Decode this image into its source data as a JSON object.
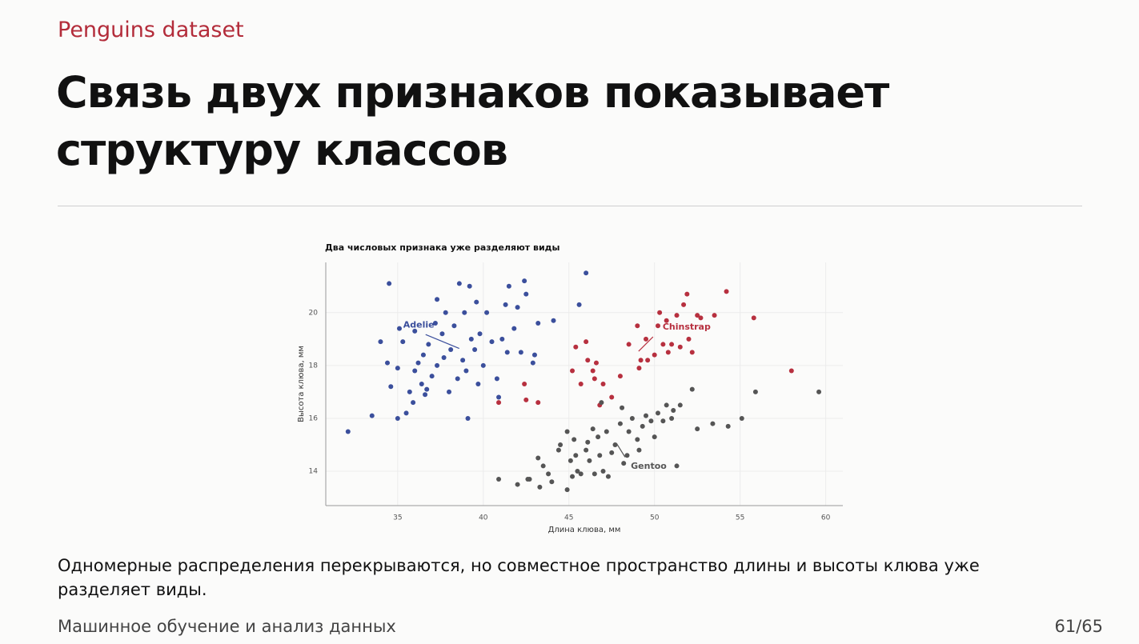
{
  "header": {
    "kicker": "Penguins dataset",
    "title": "Связь двух признаков показывает структуру классов"
  },
  "chart_data": {
    "type": "scatter",
    "title": "Два числовых признака уже разделяют виды",
    "x_label": "Длина клюва, мм",
    "y_label": "Высота клюва, мм",
    "xlim": [
      30.8,
      61.0
    ],
    "ylim": [
      12.7,
      21.9
    ],
    "xticks": [
      35,
      40,
      45,
      50,
      55,
      60
    ],
    "yticks": [
      14,
      16,
      18,
      20
    ],
    "grid": true,
    "series": [
      {
        "name": "Adelie",
        "color": "#3b4f9c",
        "x": [
          32.1,
          33.5,
          34.0,
          34.5,
          34.6,
          34.4,
          35.0,
          35.1,
          35.3,
          35.0,
          35.5,
          35.7,
          35.9,
          36.0,
          36.2,
          36.5,
          36.0,
          36.4,
          36.6,
          36.8,
          37.0,
          37.2,
          37.3,
          37.6,
          37.7,
          37.8,
          37.3,
          38.0,
          38.1,
          38.3,
          38.5,
          38.6,
          38.8,
          38.9,
          39.0,
          39.2,
          39.3,
          39.5,
          39.7,
          39.6,
          39.8,
          40.0,
          40.2,
          40.5,
          40.8,
          40.9,
          41.1,
          41.3,
          41.4,
          41.5,
          41.8,
          42.0,
          42.2,
          42.4,
          42.5,
          42.9,
          43.2,
          44.1,
          45.6,
          46.0,
          43.0,
          39.1,
          36.7
        ],
        "values": [
          15.5,
          16.1,
          18.9,
          21.1,
          17.2,
          18.1,
          17.9,
          19.4,
          18.9,
          16.0,
          16.2,
          17.0,
          16.6,
          17.8,
          18.1,
          18.4,
          19.3,
          17.3,
          16.9,
          18.8,
          17.6,
          19.6,
          18.0,
          19.2,
          18.3,
          20.0,
          20.5,
          17.0,
          18.6,
          19.5,
          17.5,
          21.1,
          18.2,
          20.0,
          17.8,
          21.0,
          19.0,
          18.6,
          17.3,
          20.4,
          19.2,
          18.0,
          20.0,
          18.9,
          17.5,
          16.8,
          19.0,
          20.3,
          18.5,
          21.0,
          19.4,
          20.2,
          18.5,
          21.2,
          20.7,
          18.1,
          19.6,
          19.7,
          20.3,
          21.5,
          18.4,
          16.0,
          17.1
        ]
      },
      {
        "name": "Chinstrap",
        "color": "#b7303f",
        "x": [
          40.9,
          42.4,
          42.5,
          43.2,
          45.2,
          45.4,
          45.7,
          46.0,
          46.1,
          46.4,
          46.6,
          46.8,
          47.0,
          47.5,
          48.0,
          48.5,
          49.0,
          49.2,
          49.5,
          49.6,
          50.0,
          50.2,
          50.3,
          50.5,
          50.7,
          50.8,
          51.0,
          51.3,
          51.5,
          51.7,
          52.0,
          52.2,
          52.5,
          52.7,
          53.5,
          54.2,
          55.8,
          58.0,
          49.1,
          51.9,
          46.5
        ],
        "values": [
          16.6,
          17.3,
          16.7,
          16.6,
          17.8,
          18.7,
          17.3,
          18.9,
          18.2,
          17.8,
          18.1,
          16.5,
          17.3,
          16.8,
          17.6,
          18.8,
          19.5,
          18.2,
          19.0,
          18.2,
          18.4,
          19.5,
          20.0,
          18.8,
          19.7,
          18.5,
          18.8,
          19.9,
          18.7,
          20.3,
          19.0,
          18.5,
          19.9,
          19.8,
          19.9,
          20.8,
          19.8,
          17.8,
          17.9,
          20.7,
          17.5
        ]
      },
      {
        "name": "Gentoo",
        "color": "#555555",
        "x": [
          40.9,
          42.0,
          42.7,
          43.2,
          43.3,
          43.5,
          43.8,
          44.0,
          44.4,
          44.5,
          44.9,
          45.1,
          45.2,
          45.3,
          45.5,
          45.7,
          46.0,
          46.1,
          46.2,
          46.4,
          46.5,
          46.7,
          46.8,
          47.0,
          47.2,
          47.3,
          47.5,
          47.7,
          48.0,
          48.2,
          48.4,
          48.5,
          48.7,
          49.0,
          49.1,
          49.3,
          49.5,
          49.8,
          50.0,
          50.2,
          50.5,
          50.7,
          51.0,
          51.1,
          51.3,
          51.5,
          52.2,
          52.5,
          53.4,
          54.3,
          55.1,
          55.9,
          59.6,
          44.9,
          46.9,
          42.6,
          45.4,
          48.1
        ],
        "values": [
          13.7,
          13.5,
          13.7,
          14.5,
          13.4,
          14.2,
          13.9,
          13.6,
          14.8,
          15.0,
          13.3,
          14.4,
          13.8,
          15.2,
          14.0,
          13.9,
          14.8,
          15.1,
          14.4,
          15.6,
          13.9,
          15.3,
          14.6,
          14.0,
          15.5,
          13.8,
          14.7,
          15.0,
          15.8,
          14.3,
          14.6,
          15.5,
          16.0,
          15.2,
          14.8,
          15.7,
          16.1,
          15.9,
          15.3,
          16.2,
          15.9,
          16.5,
          16.0,
          16.3,
          14.2,
          16.5,
          17.1,
          15.6,
          15.8,
          15.7,
          16.0,
          17.0,
          17.0,
          15.5,
          16.6,
          13.7,
          14.6,
          16.4
        ]
      }
    ]
  },
  "body": {
    "text": "Одномерные распределения перекрываются, но совместное пространство длины и высоты клюва уже разделяет виды."
  },
  "footer": {
    "course": "Машинное обучение и анализ данных",
    "page": "61/65"
  }
}
